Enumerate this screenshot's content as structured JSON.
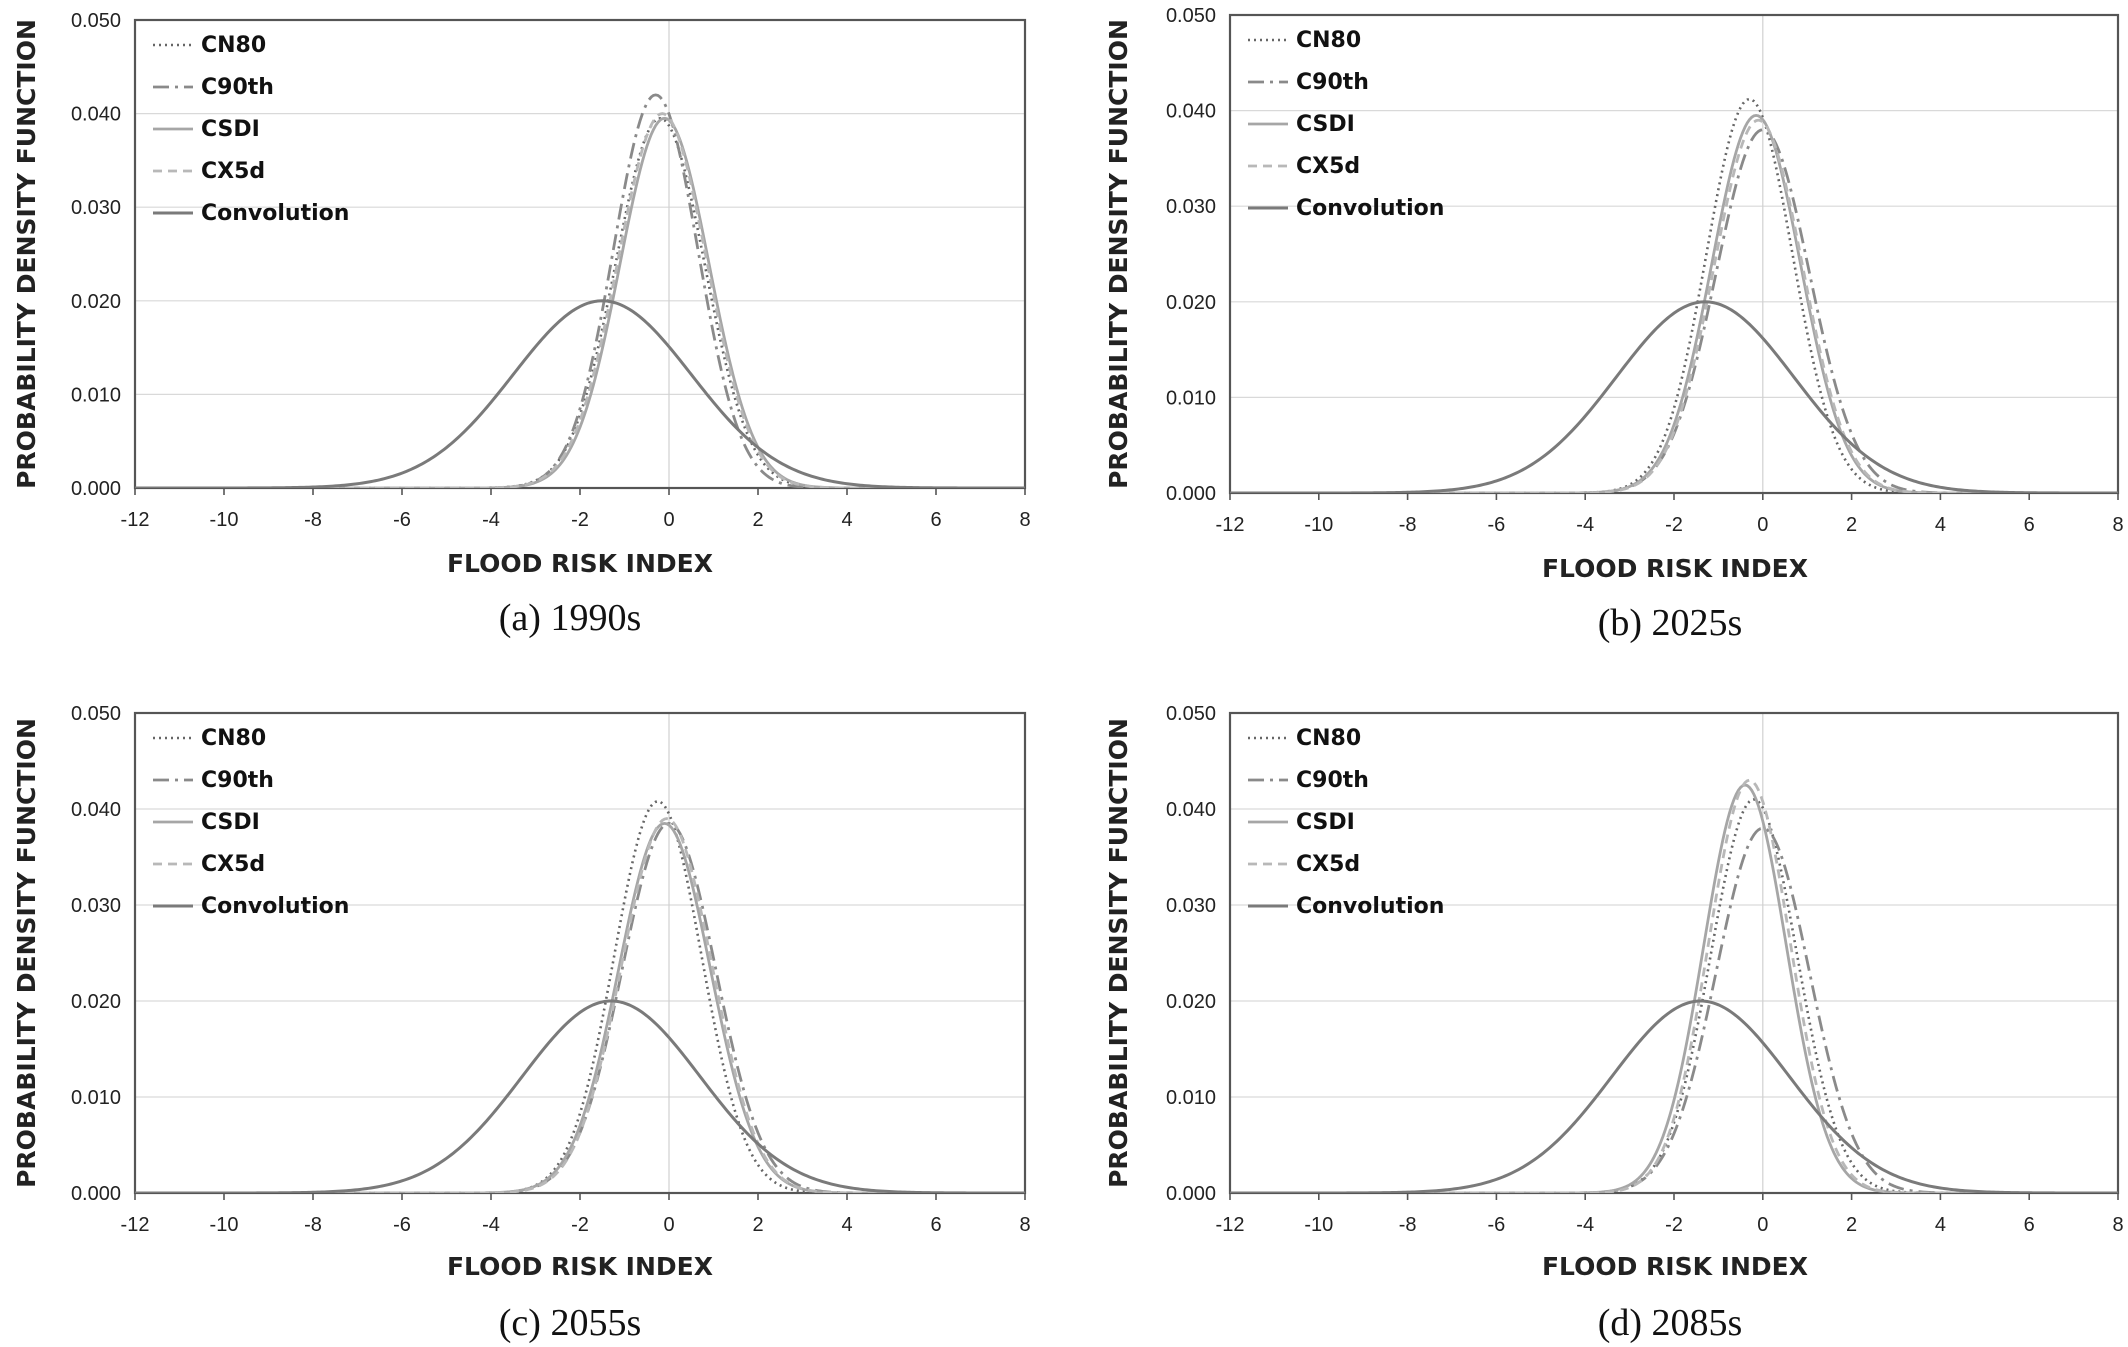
{
  "chart_data": [
    {
      "type": "line",
      "caption": "(a) 1990s",
      "xlabel": "FLOOD RISK INDEX",
      "ylabel": "PROBABILITY DENSITY FUNCTION",
      "xlim": [
        -12,
        8
      ],
      "ylim": [
        0,
        0.05
      ],
      "xticks": [
        "-12",
        "-10",
        "-8",
        "-6",
        "-4",
        "-2",
        "0",
        "2",
        "4",
        "6",
        "8"
      ],
      "yticks": [
        "0.000",
        "0.010",
        "0.020",
        "0.030",
        "0.040",
        "0.050"
      ],
      "grid": "horizontal",
      "legend_position": "top-left",
      "series": [
        {
          "name": "CN80",
          "style": "dotted",
          "peak_x": -0.2,
          "peak_y": 0.0395,
          "sd": 1.0
        },
        {
          "name": "C90th",
          "style": "dashdot",
          "peak_x": -0.3,
          "peak_y": 0.042,
          "sd": 0.95
        },
        {
          "name": "CSDI",
          "style": "solid-light",
          "peak_x": -0.1,
          "peak_y": 0.0395,
          "sd": 1.0
        },
        {
          "name": "CX5d",
          "style": "dashed",
          "peak_x": -0.15,
          "peak_y": 0.04,
          "sd": 1.0
        },
        {
          "name": "Convolution",
          "style": "solid",
          "peak_x": -1.5,
          "peak_y": 0.02,
          "sd": 2.0
        }
      ]
    },
    {
      "type": "line",
      "caption": "(b) 2025s",
      "xlabel": "FLOOD RISK INDEX",
      "ylabel": "PROBABILITY DENSITY FUNCTION",
      "xlim": [
        -12,
        8
      ],
      "ylim": [
        0,
        0.05
      ],
      "xticks": [
        "-12",
        "-10",
        "-8",
        "-6",
        "-4",
        "-2",
        "0",
        "2",
        "4",
        "6",
        "8"
      ],
      "yticks": [
        "0.000",
        "0.010",
        "0.020",
        "0.030",
        "0.040",
        "0.050"
      ],
      "grid": "horizontal",
      "legend_position": "top-left",
      "series": [
        {
          "name": "CN80",
          "style": "dotted",
          "peak_x": -0.3,
          "peak_y": 0.0412,
          "sd": 0.97
        },
        {
          "name": "C90th",
          "style": "dashdot",
          "peak_x": 0.0,
          "peak_y": 0.038,
          "sd": 1.05
        },
        {
          "name": "CSDI",
          "style": "solid-light",
          "peak_x": -0.15,
          "peak_y": 0.0395,
          "sd": 1.0
        },
        {
          "name": "CX5d",
          "style": "dashed",
          "peak_x": -0.1,
          "peak_y": 0.039,
          "sd": 1.0
        },
        {
          "name": "Convolution",
          "style": "solid",
          "peak_x": -1.3,
          "peak_y": 0.02,
          "sd": 2.0
        }
      ]
    },
    {
      "type": "line",
      "caption": "(c) 2055s",
      "xlabel": "FLOOD RISK INDEX",
      "ylabel": "PROBABILITY DENSITY FUNCTION",
      "xlim": [
        -12,
        8
      ],
      "ylim": [
        0,
        0.05
      ],
      "xticks": [
        "-12",
        "-10",
        "-8",
        "-6",
        "-4",
        "-2",
        "0",
        "2",
        "4",
        "6",
        "8"
      ],
      "yticks": [
        "0.000",
        "0.010",
        "0.020",
        "0.030",
        "0.040",
        "0.050"
      ],
      "grid": "horizontal",
      "legend_position": "top-left",
      "series": [
        {
          "name": "CN80",
          "style": "dotted",
          "peak_x": -0.25,
          "peak_y": 0.0408,
          "sd": 0.98
        },
        {
          "name": "C90th",
          "style": "dashdot",
          "peak_x": 0.0,
          "peak_y": 0.0385,
          "sd": 1.05
        },
        {
          "name": "CSDI",
          "style": "solid-light",
          "peak_x": -0.1,
          "peak_y": 0.0385,
          "sd": 1.03
        },
        {
          "name": "CX5d",
          "style": "dashed",
          "peak_x": -0.05,
          "peak_y": 0.039,
          "sd": 1.02
        },
        {
          "name": "Convolution",
          "style": "solid",
          "peak_x": -1.3,
          "peak_y": 0.02,
          "sd": 2.0
        }
      ]
    },
    {
      "type": "line",
      "caption": "(d) 2085s",
      "xlabel": "FLOOD RISK INDEX",
      "ylabel": "PROBABILITY DENSITY FUNCTION",
      "xlim": [
        -12,
        8
      ],
      "ylim": [
        0,
        0.05
      ],
      "xticks": [
        "-12",
        "-10",
        "-8",
        "-6",
        "-4",
        "-2",
        "0",
        "2",
        "4",
        "6",
        "8"
      ],
      "yticks": [
        "0.000",
        "0.010",
        "0.020",
        "0.030",
        "0.040",
        "0.050"
      ],
      "grid": "horizontal",
      "legend_position": "top-left",
      "series": [
        {
          "name": "CN80",
          "style": "dotted",
          "peak_x": -0.2,
          "peak_y": 0.041,
          "sd": 0.97
        },
        {
          "name": "C90th",
          "style": "dashdot",
          "peak_x": 0.0,
          "peak_y": 0.038,
          "sd": 1.05
        },
        {
          "name": "CSDI",
          "style": "solid-light",
          "peak_x": -0.4,
          "peak_y": 0.0425,
          "sd": 0.93
        },
        {
          "name": "CX5d",
          "style": "dashed",
          "peak_x": -0.3,
          "peak_y": 0.043,
          "sd": 0.92
        },
        {
          "name": "Convolution",
          "style": "solid",
          "peak_x": -1.4,
          "peak_y": 0.02,
          "sd": 2.0
        }
      ]
    }
  ]
}
